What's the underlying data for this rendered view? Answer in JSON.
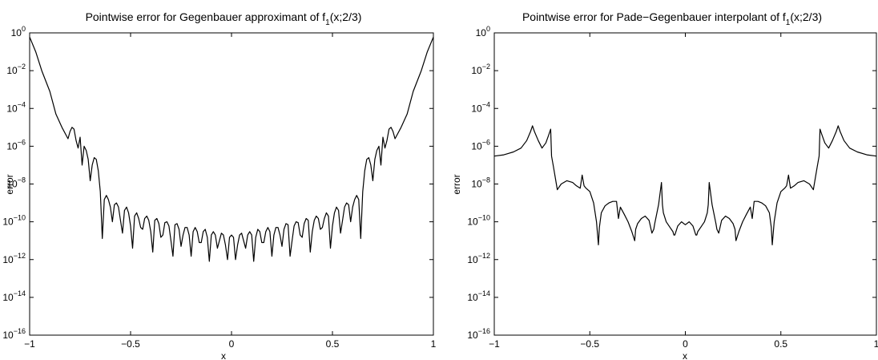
{
  "chart_data": [
    {
      "type": "line",
      "title": "Pointwise error for Gegenbauer approximant of f",
      "title_sub": "1",
      "title_tail": "(x;2/3)",
      "xlabel": "x",
      "ylabel": "error",
      "xlim": [
        -1,
        1
      ],
      "ylim": [
        1e-16,
        1
      ],
      "yscale": "log",
      "x_ticks": [
        "−1",
        "−0.5",
        "0",
        "0.5",
        "1"
      ],
      "y_tick_exponents": [
        "0",
        "−2",
        "−4",
        "−6",
        "−8",
        "−10",
        "−12",
        "−14",
        "−16"
      ],
      "grid": false,
      "series": [
        {
          "x": [
            -1.0,
            -0.97,
            -0.94,
            -0.9,
            -0.87,
            -0.84,
            -0.81,
            -0.8,
            -0.79,
            -0.78,
            -0.77,
            -0.76,
            -0.75,
            -0.74,
            -0.73,
            -0.72,
            -0.71,
            -0.7,
            -0.69,
            -0.68,
            -0.67,
            -0.66,
            -0.65,
            -0.64,
            -0.63,
            -0.62,
            -0.61,
            -0.6,
            -0.59,
            -0.58,
            -0.57,
            -0.56,
            -0.55,
            -0.54,
            -0.53,
            -0.52,
            -0.51,
            -0.5,
            -0.49,
            -0.48,
            -0.47,
            -0.46,
            -0.45,
            -0.44,
            -0.43,
            -0.42,
            -0.41,
            -0.4,
            -0.39,
            -0.38,
            -0.37,
            -0.36,
            -0.35,
            -0.34,
            -0.33,
            -0.32,
            -0.31,
            -0.3,
            -0.29,
            -0.28,
            -0.27,
            -0.26,
            -0.25,
            -0.24,
            -0.23,
            -0.22,
            -0.21,
            -0.2,
            -0.19,
            -0.18,
            -0.17,
            -0.16,
            -0.15,
            -0.14,
            -0.13,
            -0.12,
            -0.11,
            -0.1,
            -0.09,
            -0.08,
            -0.07,
            -0.06,
            -0.05,
            -0.04,
            -0.03,
            -0.02,
            -0.01,
            0.0,
            0.01,
            0.02,
            0.03,
            0.04,
            0.05,
            0.06,
            0.07,
            0.08,
            0.09,
            0.1,
            0.11,
            0.12,
            0.13,
            0.14,
            0.15,
            0.16,
            0.17,
            0.18,
            0.19,
            0.2,
            0.21,
            0.22,
            0.23,
            0.24,
            0.25,
            0.26,
            0.27,
            0.28,
            0.29,
            0.3,
            0.31,
            0.32,
            0.33,
            0.34,
            0.35,
            0.36,
            0.37,
            0.38,
            0.39,
            0.4,
            0.41,
            0.42,
            0.43,
            0.44,
            0.45,
            0.46,
            0.47,
            0.48,
            0.49,
            0.5,
            0.51,
            0.52,
            0.53,
            0.54,
            0.55,
            0.56,
            0.57,
            0.58,
            0.59,
            0.6,
            0.61,
            0.62,
            0.63,
            0.64,
            0.65,
            0.66,
            0.67,
            0.68,
            0.69,
            0.7,
            0.71,
            0.72,
            0.73,
            0.74,
            0.75,
            0.76,
            0.77,
            0.78,
            0.79,
            0.8,
            0.81,
            0.84,
            0.87,
            0.9,
            0.94,
            0.97,
            1.0
          ],
          "y": [
            0.6,
            0.1,
            0.01,
            0.0008,
            5e-05,
            1e-05,
            2.5e-06,
            6e-06,
            1e-05,
            8e-06,
            2e-06,
            8e-07,
            3e-06,
            1e-07,
            1e-06,
            6e-07,
            2e-07,
            1.5e-08,
            1e-07,
            2.5e-07,
            2e-07,
            5e-08,
            4e-09,
            1.3e-11,
            1.5e-09,
            2.5e-09,
            1.5e-09,
            6e-10,
            1e-10,
            8e-10,
            1e-09,
            6e-10,
            1.2e-10,
            2.5e-11,
            4e-10,
            6e-10,
            3e-10,
            6e-11,
            4e-12,
            2e-10,
            3e-10,
            1.5e-10,
            5e-11,
            4e-11,
            1.5e-10,
            2e-10,
            1.2e-10,
            3e-11,
            2.5e-12,
            1.2e-10,
            1.5e-10,
            8e-11,
            1.5e-11,
            2e-11,
            9e-11,
            1e-10,
            6e-11,
            1e-11,
            1.5e-12,
            7e-11,
            8e-11,
            4e-11,
            5e-12,
            2e-11,
            5e-11,
            5e-11,
            2e-11,
            1.5e-12,
            3e-11,
            5e-11,
            3e-11,
            8e-12,
            8e-12,
            3e-11,
            4e-11,
            1.5e-11,
            8e-13,
            2e-11,
            3e-11,
            2e-11,
            4e-12,
            1e-11,
            2.5e-11,
            2e-11,
            6e-12,
            1e-12,
            1.5e-11,
            2e-11,
            1.5e-11,
            1e-12,
            6e-12,
            2e-11,
            2.5e-11,
            1e-11,
            4e-12,
            2e-11,
            3e-11,
            2e-11,
            8e-13,
            1.5e-11,
            4e-11,
            3e-11,
            8e-12,
            8e-12,
            3e-11,
            5e-11,
            3e-11,
            1.5e-12,
            2e-11,
            5e-11,
            5e-11,
            2e-11,
            5e-12,
            4e-11,
            8e-11,
            7e-11,
            1.5e-12,
            1e-11,
            6e-11,
            1e-10,
            9e-11,
            2e-11,
            1.5e-11,
            8e-11,
            1.5e-10,
            1.2e-10,
            2.5e-12,
            3e-11,
            1.2e-10,
            2e-10,
            1.5e-10,
            4e-11,
            5e-11,
            1.5e-10,
            3e-10,
            2e-10,
            4e-12,
            6e-11,
            3e-10,
            6e-10,
            4e-10,
            2.5e-11,
            1.2e-10,
            6e-10,
            1e-09,
            8e-10,
            1e-10,
            6e-10,
            1.5e-09,
            2.5e-09,
            1.5e-09,
            1.3e-11,
            4e-09,
            5e-08,
            2e-07,
            2.5e-07,
            1e-07,
            1.5e-08,
            2e-07,
            6e-07,
            1e-06,
            1e-07,
            3e-06,
            8e-07,
            2e-06,
            8e-06,
            1e-05,
            6e-06,
            2.5e-06,
            1e-05,
            5e-05,
            0.0008,
            0.01,
            0.1,
            0.6
          ]
        }
      ]
    },
    {
      "type": "line",
      "title": "Pointwise error for Pade−Gegenbauer interpolant of f",
      "title_sub": "1",
      "title_tail": "(x;2/3)",
      "xlabel": "x",
      "ylabel": "error",
      "xlim": [
        -1,
        1
      ],
      "ylim": [
        1e-16,
        1
      ],
      "yscale": "log",
      "x_ticks": [
        "−1",
        "−0.5",
        "0",
        "0.5",
        "1"
      ],
      "y_tick_exponents": [
        "0",
        "−2",
        "−4",
        "−6",
        "−8",
        "−10",
        "−12",
        "−14",
        "−16"
      ],
      "grid": false,
      "series": [
        {
          "x": [
            -1.0,
            -0.95,
            -0.9,
            -0.86,
            -0.83,
            -0.81,
            -0.8,
            -0.79,
            -0.77,
            -0.75,
            -0.73,
            -0.715,
            -0.705,
            -0.7,
            -0.69,
            -0.68,
            -0.67,
            -0.65,
            -0.62,
            -0.59,
            -0.57,
            -0.55,
            -0.54,
            -0.53,
            -0.52,
            -0.5,
            -0.48,
            -0.465,
            -0.455,
            -0.45,
            -0.44,
            -0.42,
            -0.4,
            -0.38,
            -0.36,
            -0.35,
            -0.345,
            -0.34,
            -0.32,
            -0.3,
            -0.28,
            -0.265,
            -0.26,
            -0.25,
            -0.23,
            -0.21,
            -0.19,
            -0.175,
            -0.165,
            -0.16,
            -0.14,
            -0.125,
            -0.12,
            -0.115,
            -0.1,
            -0.08,
            -0.065,
            -0.06,
            -0.055,
            -0.04,
            -0.02,
            0.0,
            0.02,
            0.04,
            0.055,
            0.06,
            0.065,
            0.08,
            0.1,
            0.115,
            0.12,
            0.125,
            0.14,
            0.16,
            0.165,
            0.175,
            0.19,
            0.21,
            0.23,
            0.25,
            0.26,
            0.265,
            0.28,
            0.3,
            0.32,
            0.34,
            0.345,
            0.35,
            0.36,
            0.38,
            0.4,
            0.42,
            0.44,
            0.45,
            0.455,
            0.465,
            0.48,
            0.5,
            0.52,
            0.53,
            0.54,
            0.55,
            0.57,
            0.59,
            0.62,
            0.65,
            0.67,
            0.68,
            0.69,
            0.7,
            0.705,
            0.715,
            0.73,
            0.75,
            0.77,
            0.79,
            0.8,
            0.81,
            0.83,
            0.86,
            0.9,
            0.95,
            1.0
          ],
          "y": [
            3e-07,
            3.5e-07,
            5e-07,
            8e-07,
            2e-06,
            6e-06,
            1.2e-05,
            6e-06,
            2e-06,
            8e-07,
            1.5e-06,
            4e-06,
            8e-06,
            3e-07,
            8e-08,
            2e-08,
            5e-09,
            1e-08,
            1.5e-08,
            1.2e-08,
            8e-09,
            6e-09,
            3e-08,
            8e-09,
            6e-09,
            4e-09,
            1e-09,
            1e-10,
            6e-12,
            5e-11,
            3e-10,
            7e-10,
            1e-09,
            1.2e-09,
            1.2e-09,
            1.5e-10,
            3e-10,
            6e-10,
            2.5e-10,
            1e-10,
            3e-11,
            1e-11,
            4e-11,
            8e-11,
            1.5e-10,
            2e-10,
            1.2e-10,
            2.5e-11,
            4e-11,
            8e-11,
            8e-10,
            1.2e-08,
            8e-10,
            3e-10,
            1e-10,
            5e-11,
            3e-11,
            2e-11,
            2e-11,
            6e-11,
            1e-10,
            7e-11,
            1e-10,
            6e-11,
            2e-11,
            2e-11,
            3e-11,
            5e-11,
            1e-10,
            3e-10,
            8e-10,
            1.2e-08,
            8e-10,
            8e-11,
            4e-11,
            2.5e-11,
            1.2e-10,
            2e-10,
            1.5e-10,
            8e-11,
            4e-11,
            1e-11,
            3e-11,
            1e-10,
            2.5e-10,
            6e-10,
            3e-10,
            1.5e-10,
            1.2e-09,
            1.2e-09,
            1e-09,
            7e-10,
            3e-10,
            5e-11,
            6e-12,
            1e-10,
            1e-09,
            4e-09,
            6e-09,
            8e-09,
            3e-08,
            6e-09,
            8e-09,
            1.2e-08,
            1.5e-08,
            1e-08,
            5e-09,
            2e-08,
            8e-08,
            3e-07,
            8e-06,
            4e-06,
            1.5e-06,
            8e-07,
            2e-06,
            6e-06,
            1.2e-05,
            6e-06,
            2e-06,
            8e-07,
            5e-07,
            3.5e-07,
            3e-07
          ]
        }
      ]
    }
  ]
}
